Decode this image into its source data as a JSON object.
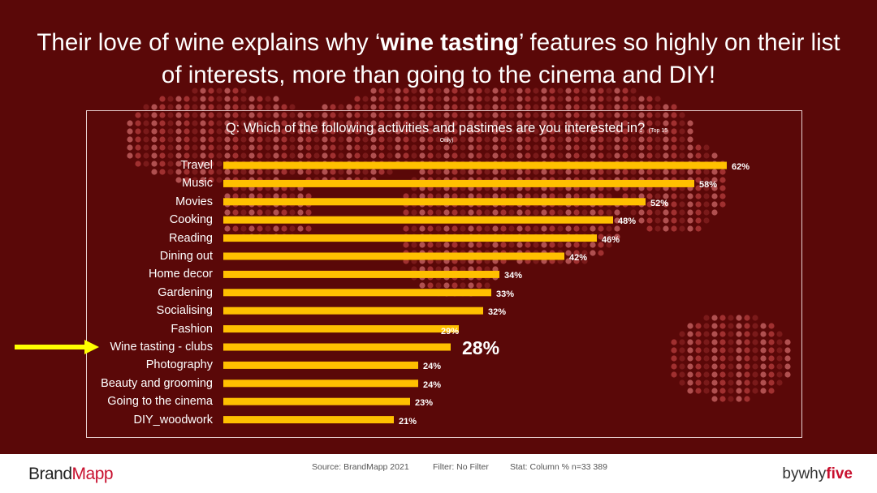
{
  "title": {
    "part1": "Their love of wine explains why ‘",
    "bold": "wine tasting",
    "part2": "’ features so highly on their list of interests, more than going to the cinema and DIY!"
  },
  "question": {
    "text": "Q: Which of the following activities and pastimes are you interested in?",
    "note": "(Top 15",
    "note2": "Only)"
  },
  "chart_data": {
    "type": "bar",
    "orientation": "horizontal",
    "categories": [
      "Travel",
      "Music",
      "Movies",
      "Cooking",
      "Reading",
      "Dining out",
      "Home decor",
      "Gardening",
      "Socialising",
      "Fashion",
      "Wine tasting - clubs",
      "Photography",
      "Beauty and grooming",
      "Going to the cinema",
      "DIY_woodwork"
    ],
    "values": [
      62,
      58,
      52,
      48,
      46,
      42,
      34,
      33,
      32,
      29,
      28,
      24,
      24,
      23,
      21
    ],
    "value_labels": [
      "62%",
      "58%",
      "52%",
      "48%",
      "46%",
      "42%",
      "34%",
      "33%",
      "32%",
      "29%",
      "28%",
      "24%",
      "24%",
      "23%",
      "21%"
    ],
    "highlight_index": 10,
    "bar_color": "#ffc000",
    "unit": "%"
  },
  "footer": {
    "brand_left_a": "Brand",
    "brand_left_b": "Mapp",
    "source": "Source: BrandMapp 2021",
    "filter": "Filter: No Filter",
    "stat": "Stat: Column %  n=33  389",
    "brand_right_a": "bywhy",
    "brand_right_b": "five"
  },
  "colors": {
    "background": "#5a0808",
    "accent": "#c8102e",
    "arrow": "#ffff00"
  }
}
